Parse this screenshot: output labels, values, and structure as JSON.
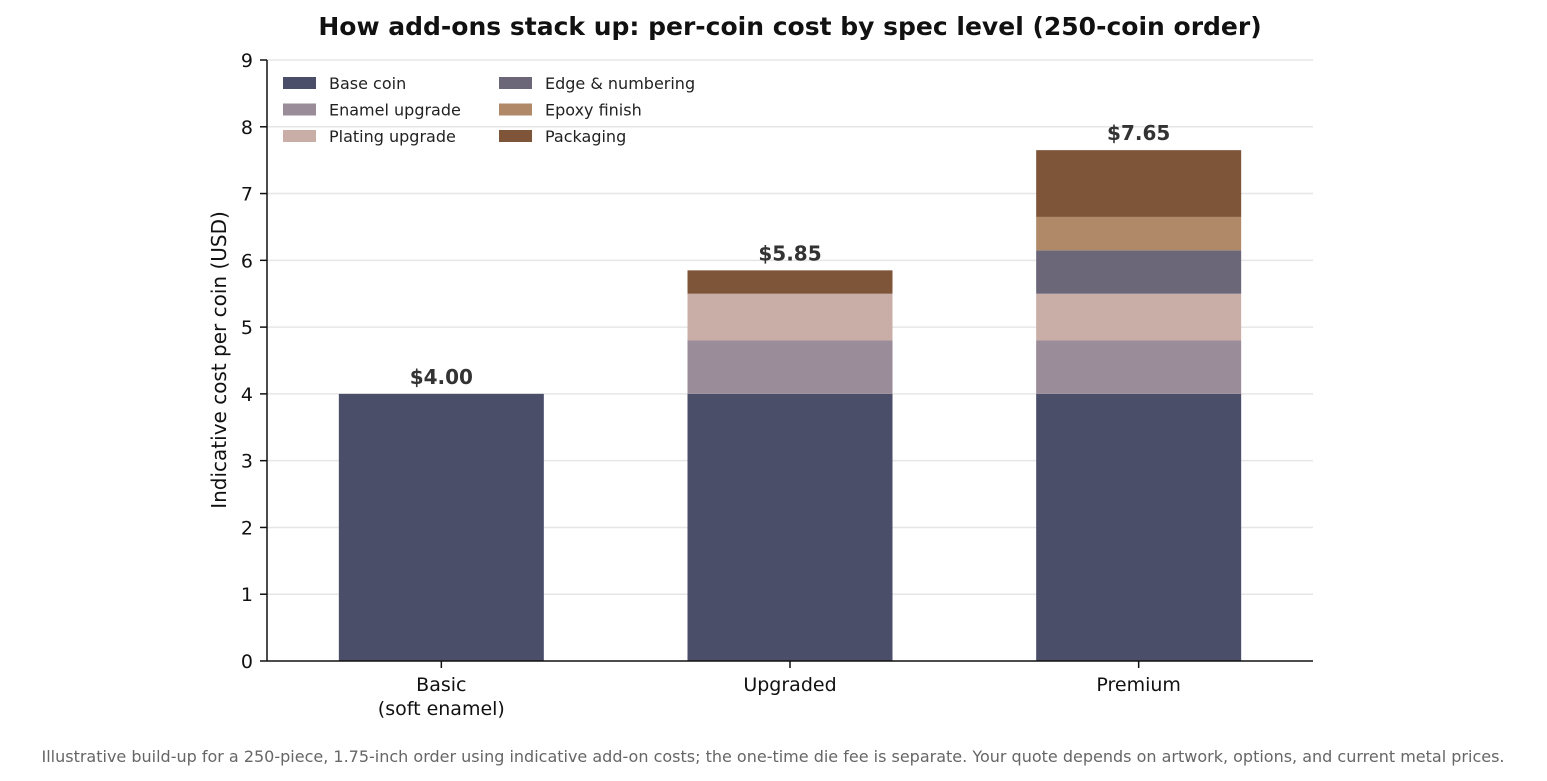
{
  "chart_data": {
    "type": "bar",
    "stacked": true,
    "title": "How add-ons stack up: per-coin cost by spec level (250-coin order)",
    "xlabel": "",
    "ylabel": "Indicative cost per coin (USD)",
    "ylim": [
      0,
      9
    ],
    "yticks": [
      "0",
      "1",
      "2",
      "3",
      "4",
      "5",
      "6",
      "7",
      "8",
      "9"
    ],
    "grid": true,
    "legend_position": "top-left",
    "categories": [
      [
        "Basic",
        "(soft enamel)"
      ],
      [
        "Upgraded"
      ],
      [
        "Premium"
      ]
    ],
    "totals": [
      "$4.00",
      "$5.85",
      "$7.65"
    ],
    "series": [
      {
        "name": "Base coin",
        "color": "#4a4e69",
        "values": [
          4.0,
          4.0,
          4.0
        ]
      },
      {
        "name": "Enamel upgrade",
        "color": "#9a8c98",
        "values": [
          0,
          0.8,
          0.8
        ]
      },
      {
        "name": "Plating upgrade",
        "color": "#c9ada7",
        "values": [
          0,
          0.7,
          0.7
        ]
      },
      {
        "name": "Edge & numbering",
        "color": "#6b6778",
        "values": [
          0,
          0,
          0.65
        ]
      },
      {
        "name": "Epoxy finish",
        "color": "#b08968",
        "values": [
          0,
          0,
          0.5
        ]
      },
      {
        "name": "Packaging",
        "color": "#7f5539",
        "values": [
          0,
          0.35,
          1.0
        ]
      }
    ]
  },
  "caption": "Illustrative build-up for a 250-piece, 1.75-inch order using indicative add-on costs; the one-time die fee is separate. Your quote depends on artwork, options, and current metal prices."
}
